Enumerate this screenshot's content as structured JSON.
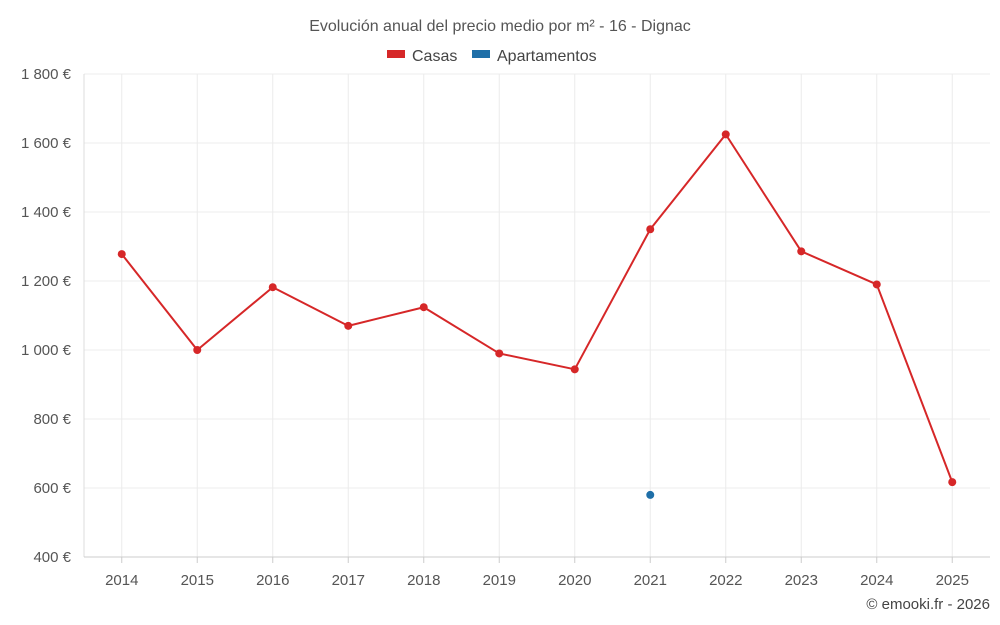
{
  "chart_data": {
    "type": "line",
    "title": "Evolución anual del precio medio por m² - 16 - Dignac",
    "categories": [
      "2014",
      "2015",
      "2016",
      "2017",
      "2018",
      "2019",
      "2020",
      "2021",
      "2022",
      "2023",
      "2024",
      "2025"
    ],
    "series": [
      {
        "name": "Casas",
        "color": "#d62728",
        "values": [
          1278,
          1000,
          1182,
          1070,
          1124,
          990,
          944,
          1350,
          1625,
          1286,
          1190,
          617
        ]
      },
      {
        "name": "Apartamentos",
        "color": "#1f6fa8",
        "values": [
          null,
          null,
          null,
          null,
          null,
          null,
          null,
          580,
          null,
          null,
          null,
          null
        ]
      }
    ],
    "y_ticks": [
      400,
      600,
      800,
      1000,
      1200,
      1400,
      1600,
      1800
    ],
    "y_tick_labels": [
      "400 €",
      "600 €",
      "800 €",
      "1 000 €",
      "1 200 €",
      "1 400 €",
      "1 600 €",
      "1 800 €"
    ],
    "ylim": [
      400,
      1800
    ],
    "grid": true,
    "legend_position": "top-center",
    "xlabel": "",
    "ylabel": "",
    "credit": "© emooki.fr - 2026"
  }
}
